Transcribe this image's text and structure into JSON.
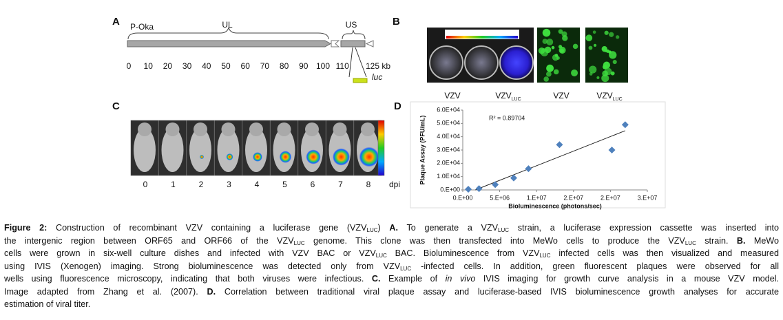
{
  "panel_a": {
    "letter": "A",
    "strain": "P-Oka",
    "ul": "UL",
    "us": "US",
    "luc": "luc",
    "ticks": [
      "0",
      "10",
      "20",
      "30",
      "40",
      "50",
      "60",
      "70",
      "80",
      "90",
      "100",
      "110",
      "125 kb"
    ]
  },
  "panel_b": {
    "letter": "B",
    "labels": [
      {
        "text": "VZV"
      },
      {
        "text": "VZV",
        "sub": "LUC"
      },
      {
        "text": "VZV"
      },
      {
        "text": "VZV",
        "sub": "LUC"
      }
    ]
  },
  "panel_c": {
    "letter": "C",
    "days": [
      "0",
      "1",
      "2",
      "3",
      "4",
      "5",
      "6",
      "7",
      "8"
    ],
    "unit": "dpi"
  },
  "panel_d": {
    "letter": "D"
  },
  "chart_data": {
    "type": "scatter",
    "ylabel": "Plaque Assay (PFU/mL)",
    "xlabel": "Bioluminescence (photons/sec)",
    "annotation": "R² = 0.89704",
    "x": [
      750000,
      2200000,
      4400000,
      6900000,
      8900000,
      13100000,
      20200000,
      22000000
    ],
    "series": [
      {
        "color": "#4f81bd",
        "values": [
          500,
          1000,
          4000,
          9000,
          16000,
          34000,
          30000,
          49000
        ]
      }
    ],
    "trendline": {
      "x": [
        1700000,
        22000000
      ],
      "y": [
        0,
        44500
      ],
      "color": "#222"
    },
    "xlim": [
      0,
      25000000
    ],
    "xticks": [
      {
        "value": 0,
        "label": "0.E+00"
      },
      {
        "value": 5000000,
        "label": "5.E+06"
      },
      {
        "value": 10000000,
        "label": "1.E+07"
      },
      {
        "value": 15000000,
        "label": "2.E+07"
      },
      {
        "value": 20000000,
        "label": "2.E+07"
      },
      {
        "value": 25000000,
        "label": "3.E+07"
      }
    ],
    "ylim": [
      0,
      60000
    ],
    "yticks": [
      {
        "value": 0,
        "label": "0.E+00"
      },
      {
        "value": 10000,
        "label": "1.0E+04"
      },
      {
        "value": 20000,
        "label": "2.0E+04"
      },
      {
        "value": 30000,
        "label": "3.0E+04"
      },
      {
        "value": 40000,
        "label": "4.0E+04"
      },
      {
        "value": 50000,
        "label": "5.0E+04"
      },
      {
        "value": 60000,
        "label": "6.0E+04"
      }
    ]
  },
  "caption": {
    "lines": [
      [
        {
          "style": "b",
          "text": "Figure 2:"
        },
        " Construction of recombinant VZV containing a luciferase gene (VZV",
        {
          "style": "sub",
          "text": "LUC"
        },
        ") ",
        {
          "style": "b",
          "text": "A."
        },
        " To generate a VZV",
        {
          "style": "sub",
          "text": "LUC"
        },
        " strain, a luciferase expression cassette was inserted into"
      ],
      [
        "the intergenic region between ORF65 and ORF66 of the VZV",
        {
          "style": "sub",
          "text": "LUC"
        },
        " genome. This clone was then transfected into MeWo cells to produce the VZV",
        {
          "style": "sub",
          "text": "LUC"
        },
        " strain. ",
        {
          "style": "b",
          "text": "B."
        },
        " MeWo"
      ],
      [
        "cells were grown in six-well culture dishes and infected with VZV BAC or VZV",
        {
          "style": "sub",
          "text": "LUC"
        },
        " BAC. Bioluminescence from VZV",
        {
          "style": "sub",
          "text": "LUC"
        },
        " infected cells was then visualized and measured"
      ],
      [
        "using IVIS (Xenogen) imaging. Strong bioluminescence was detected only from VZV",
        {
          "style": "sub",
          "text": "LUC"
        },
        " -infected cells. In addition, green fluorescent plaques were observed for all"
      ],
      [
        "wells using fluorescence microscopy, indicating that both viruses were infectious. ",
        {
          "style": "b",
          "text": "C."
        },
        " Example of ",
        {
          "style": "i",
          "text": "in vivo"
        },
        " IVIS imaging for growth curve analysis in a mouse VZV model."
      ],
      [
        "Image adapted from Zhang et al. (2007). ",
        {
          "style": "b",
          "text": "D."
        },
        " Correlation between traditional viral plaque assay and luciferase-based IVIS bioluminescence growth analyses for accurate"
      ],
      [
        "estimation of viral titer."
      ]
    ]
  }
}
